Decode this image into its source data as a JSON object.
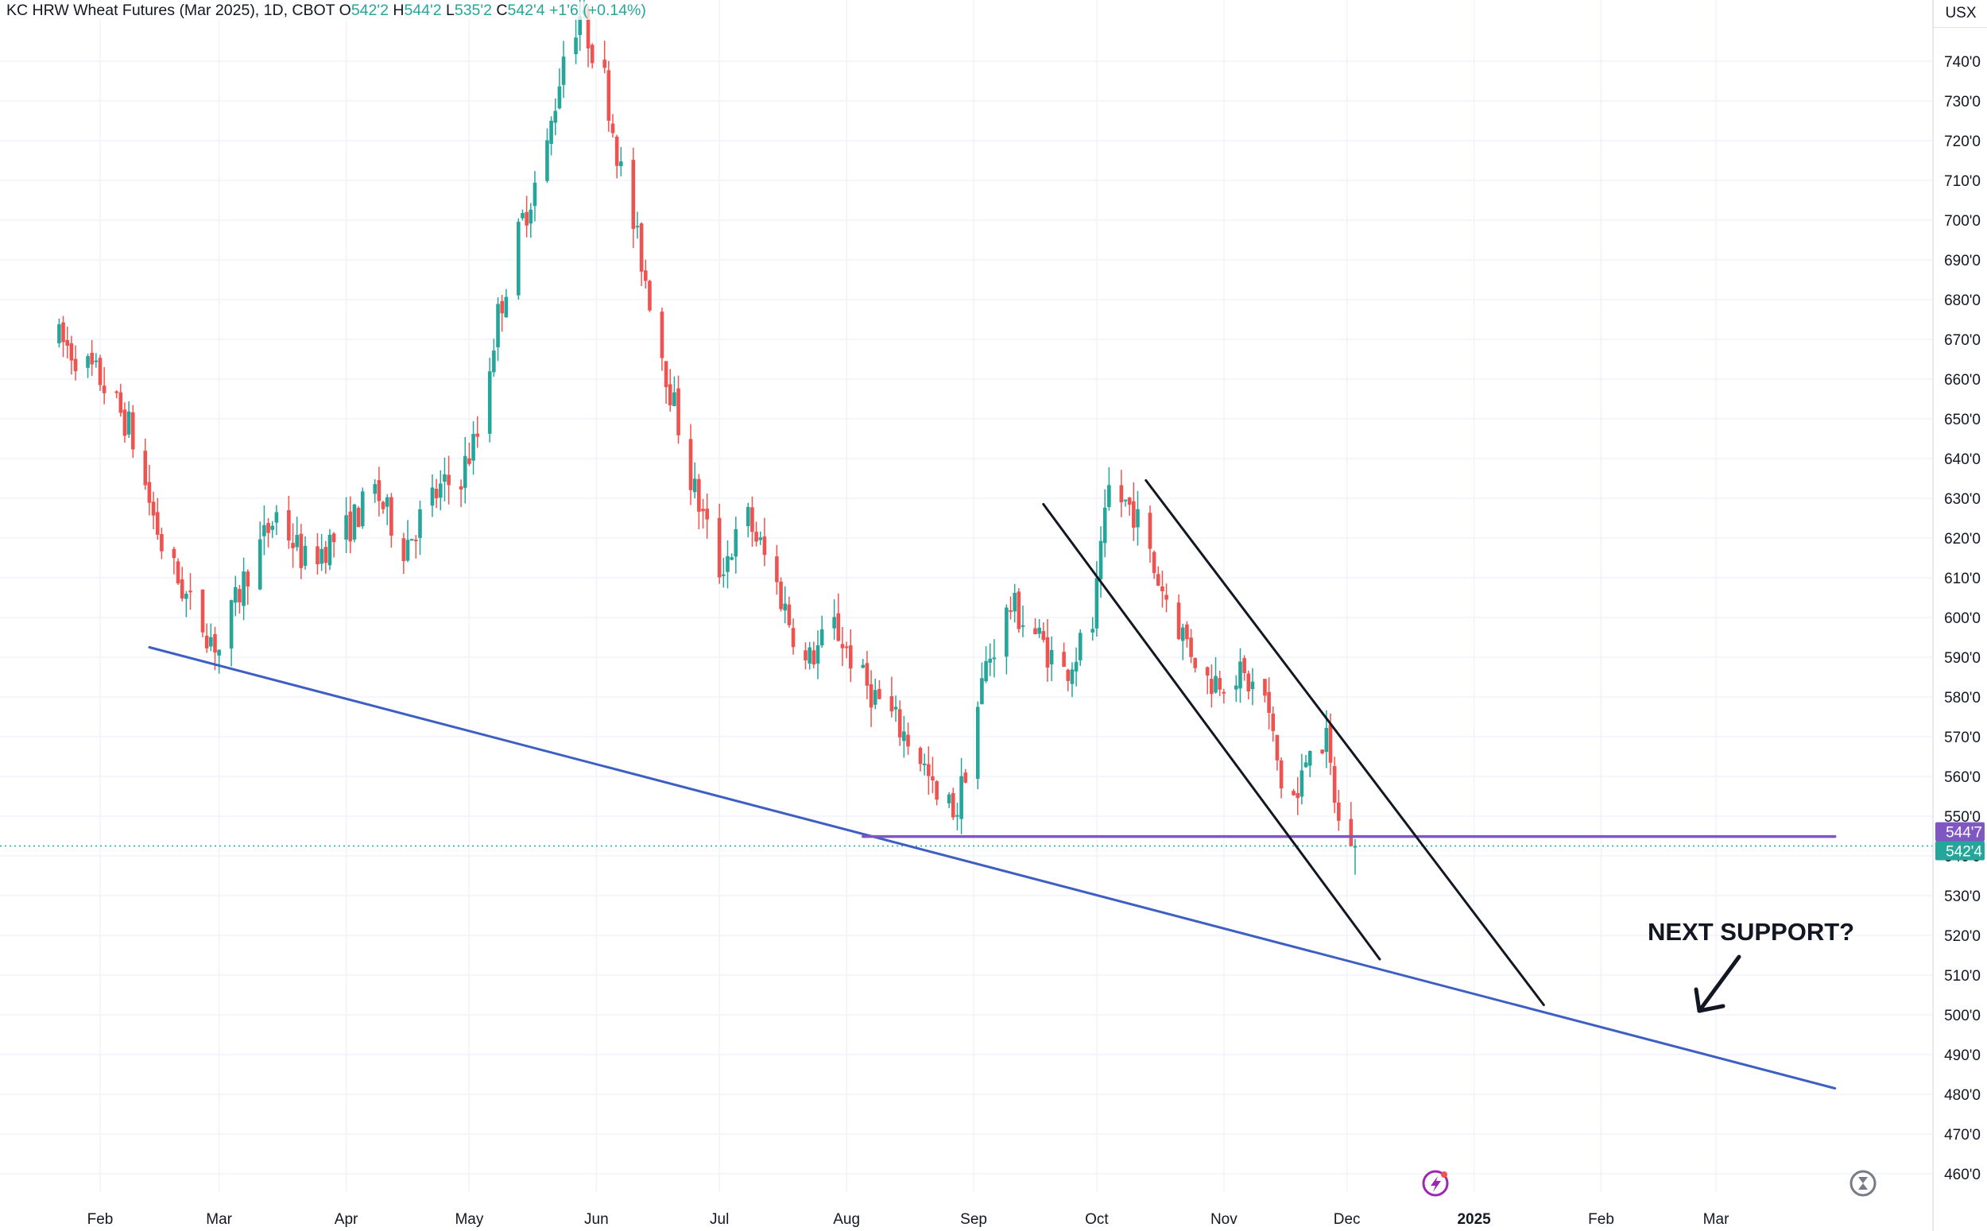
{
  "header": {
    "title": "KC HRW Wheat Futures (Mar 2025), 1D, CBOT",
    "open_label": "O",
    "open": "542'2",
    "high_label": "H",
    "high": "544'2",
    "low_label": "L",
    "low": "535'2",
    "close_label": "C",
    "close": "542'4",
    "change": "+1'6 (+0.14%)"
  },
  "currency": "USX",
  "colors": {
    "up": "#26a69a",
    "down": "#ef5350",
    "trendline": "#3d5fc4",
    "level": "#7e57c2",
    "channel": "#131722"
  },
  "price_tags": {
    "level": "544'7",
    "last": "542'4"
  },
  "annotation": "NEXT SUPPORT?",
  "icons": [
    "lightning-icon",
    "hourglass-icon"
  ],
  "chart_data": {
    "type": "candlestick",
    "title": "KC HRW Wheat Futures (Mar 2025), 1D, CBOT",
    "ylim": [
      455,
      755
    ],
    "ylabel": "USX",
    "y_ticks": [
      "740'0",
      "730'0",
      "720'0",
      "710'0",
      "700'0",
      "690'0",
      "680'0",
      "670'0",
      "660'0",
      "650'0",
      "640'0",
      "630'0",
      "620'0",
      "610'0",
      "600'0",
      "590'0",
      "580'0",
      "570'0",
      "560'0",
      "550'0",
      "540'0",
      "530'0",
      "520'0",
      "510'0",
      "500'0",
      "490'0",
      "480'0",
      "470'0",
      "460'0"
    ],
    "y_tick_values": [
      740,
      730,
      720,
      710,
      700,
      690,
      680,
      670,
      660,
      650,
      640,
      630,
      620,
      610,
      600,
      590,
      580,
      570,
      560,
      550,
      540,
      530,
      520,
      510,
      500,
      490,
      480,
      470,
      460
    ],
    "x_ticks": [
      "Feb",
      "Mar",
      "Apr",
      "May",
      "Jun",
      "Jul",
      "Aug",
      "Sep",
      "Oct",
      "Nov",
      "Dec",
      "2025",
      "Feb",
      "Mar"
    ],
    "x_tick_dates": [
      "2024-02-01",
      "2024-03-01",
      "2024-04-01",
      "2024-05-01",
      "2024-06-01",
      "2024-07-01",
      "2024-08-01",
      "2024-09-01",
      "2024-10-01",
      "2024-11-01",
      "2024-12-01",
      "2025-01-01",
      "2025-02-01",
      "2025-03-01"
    ],
    "grid": true,
    "anchors": [
      [
        "2024-01-22",
        670
      ],
      [
        "2024-02-01",
        660
      ],
      [
        "2024-02-08",
        648
      ],
      [
        "2024-02-16",
        618
      ],
      [
        "2024-02-23",
        603
      ],
      [
        "2024-03-01",
        592
      ],
      [
        "2024-03-08",
        612
      ],
      [
        "2024-03-15",
        626
      ],
      [
        "2024-03-22",
        614
      ],
      [
        "2024-04-01",
        622
      ],
      [
        "2024-04-08",
        632
      ],
      [
        "2024-04-15",
        618
      ],
      [
        "2024-04-22",
        630
      ],
      [
        "2024-04-29",
        636
      ],
      [
        "2024-05-03",
        646
      ],
      [
        "2024-05-08",
        676
      ],
      [
        "2024-05-14",
        700
      ],
      [
        "2024-05-20",
        718
      ],
      [
        "2024-05-24",
        742
      ],
      [
        "2024-05-28",
        752
      ],
      [
        "2024-06-03",
        735
      ],
      [
        "2024-06-07",
        712
      ],
      [
        "2024-06-12",
        690
      ],
      [
        "2024-06-18",
        662
      ],
      [
        "2024-06-24",
        635
      ],
      [
        "2024-07-01",
        612
      ],
      [
        "2024-07-08",
        625
      ],
      [
        "2024-07-15",
        608
      ],
      [
        "2024-07-22",
        588
      ],
      [
        "2024-07-29",
        598
      ],
      [
        "2024-08-05",
        584
      ],
      [
        "2024-08-12",
        575
      ],
      [
        "2024-08-19",
        565
      ],
      [
        "2024-08-23",
        553
      ],
      [
        "2024-08-28",
        552
      ],
      [
        "2024-09-04",
        588
      ],
      [
        "2024-09-10",
        603
      ],
      [
        "2024-09-16",
        596
      ],
      [
        "2024-09-23",
        586
      ],
      [
        "2024-09-30",
        598
      ],
      [
        "2024-10-04",
        632
      ],
      [
        "2024-10-10",
        627
      ],
      [
        "2024-10-15",
        612
      ],
      [
        "2024-10-21",
        598
      ],
      [
        "2024-10-28",
        584
      ],
      [
        "2024-11-04",
        586
      ],
      [
        "2024-11-11",
        580
      ],
      [
        "2024-11-15",
        558
      ],
      [
        "2024-11-19",
        554
      ],
      [
        "2024-11-22",
        570
      ],
      [
        "2024-11-26",
        568
      ],
      [
        "2024-11-29",
        548
      ],
      [
        "2024-12-03",
        542.5
      ]
    ],
    "candles_ohlc": [
      {
        "date": "2024-12-03",
        "open": 542.25,
        "high": 544.25,
        "low": 535.25,
        "close": 542.5
      }
    ],
    "lines": [
      {
        "name": "support-trendline",
        "from": [
          "2024-02-13",
          592.5
        ],
        "to": [
          "2025-03-30",
          481.5
        ]
      },
      {
        "name": "level-line",
        "from": [
          "2024-08-05",
          544.875
        ],
        "to": [
          "2025-03-30",
          544.875
        ]
      },
      {
        "name": "channel-lower",
        "from": [
          "2024-09-18",
          628.5
        ],
        "to": [
          "2024-12-09",
          514
        ]
      },
      {
        "name": "channel-upper",
        "from": [
          "2024-10-13",
          634.5
        ],
        "to": [
          "2025-01-18",
          502.5
        ]
      }
    ]
  }
}
